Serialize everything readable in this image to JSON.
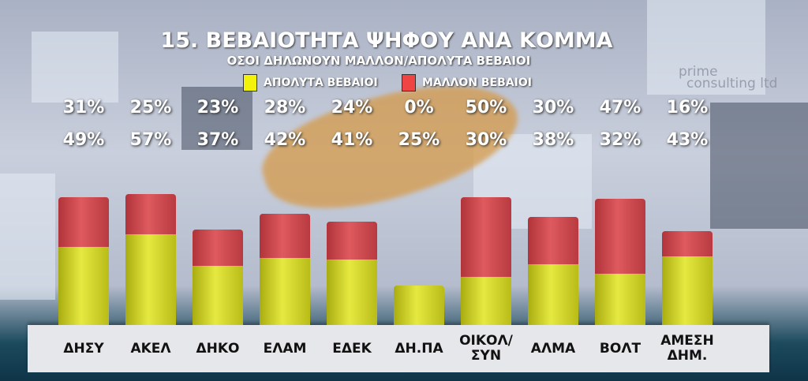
{
  "chart_data": {
    "type": "bar",
    "stacked": true,
    "title": "15. ΒΕΒΑΙΟΤΗΤΑ ΨΗΦΟΥ ΑΝΑ ΚΟΜΜΑ",
    "subtitle": "ΟΣΟΙ ΔΗΛΩΝΟΥΝ ΜΑΛΛΟΝ/ΑΠΟΛΥΤΑ ΒΕΒΑΙΟΙ",
    "categories": [
      "ΔΗΣΥ",
      "ΑΚΕΛ",
      "ΔΗΚΟ",
      "ΕΛΑΜ",
      "ΕΔΕΚ",
      "ΔΗ.ΠΑ",
      "ΟΙΚΟΛ/ ΣΥΝ",
      "ΑΛΜΑ",
      "ΒΟΛΤ",
      "ΑΜΕΣΗ ΔΗΜ."
    ],
    "series": [
      {
        "name": "ΑΠΟΛΥΤΑ ΒΕΒΑΙΟΙ",
        "color": "#d9dc2a",
        "values": [
          49,
          57,
          37,
          42,
          41,
          25,
          30,
          38,
          32,
          43
        ]
      },
      {
        "name": "ΜΑΛΛΟΝ ΒΕΒΑΙΟΙ",
        "color": "#d64a4f",
        "values": [
          31,
          25,
          23,
          28,
          24,
          0,
          50,
          30,
          47,
          16
        ]
      }
    ],
    "unit": "%",
    "legend": "top",
    "grid": false
  },
  "logo": {
    "line1": "prime",
    "line2": "consulting ltd"
  }
}
